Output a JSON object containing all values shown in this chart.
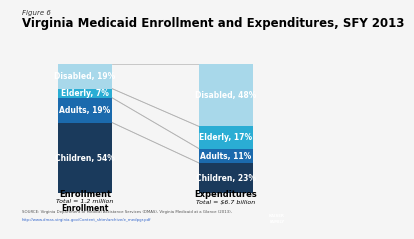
{
  "figure_label": "Figure 6",
  "title": "Virginia Medicaid Enrollment and Expenditures, SFY 2013",
  "enrollment": {
    "label": "Enrollment",
    "sublabel": "Total = 1.2 million",
    "categories": [
      "Children",
      "Adults",
      "Elderly",
      "Disabled"
    ],
    "values": [
      54,
      19,
      7,
      19
    ],
    "colors": [
      "#1a3a5c",
      "#1b6aad",
      "#2aadd4",
      "#a8d8ea"
    ]
  },
  "expenditures": {
    "label": "Expenditures",
    "sublabel": "Total = $6.7 billion",
    "categories": [
      "Children",
      "Adults",
      "Elderly",
      "Disabled"
    ],
    "values": [
      23,
      11,
      17,
      48
    ],
    "colors": [
      "#1a3a5c",
      "#1b6aad",
      "#2aadd4",
      "#a8d8ea"
    ]
  },
  "source_text": "SOURCE: Virginia Department of Medical Assistance Services (DMAS), Virginia Medicaid at a Glance (2013),",
  "source_url": "http://www.dmas.virginia.gov/Content_shtm/archive/e_medpgr.pdf",
  "background_color": "#f5f5f5",
  "title_fontsize": 8.5,
  "figure_label_fontsize": 5.0,
  "label_fontsize": 5.5,
  "sublabel_fontsize": 4.5
}
